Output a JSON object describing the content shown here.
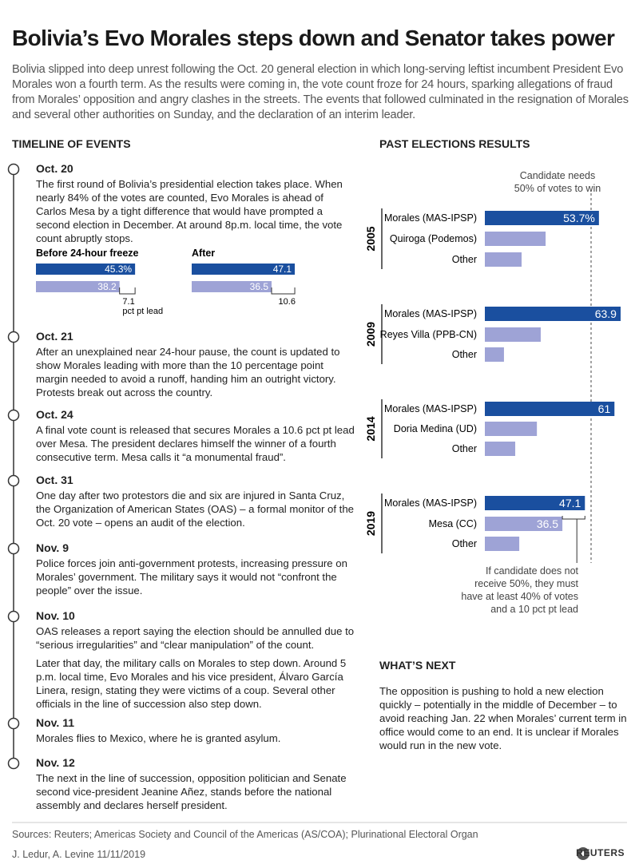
{
  "header": {
    "title": "Bolivia’s Evo Morales steps down and Senator takes power",
    "intro": "Bolivia slipped into deep unrest following the Oct. 20 general election in which long-serving leftist incumbent President Evo Morales won a fourth term. As the results were coming in, the vote count froze for 24 hours, sparking allegations of fraud from Morales’ opposition and angry clashes in the streets. The events that followed culminated in the resignation of Morales and several other authorities on Sunday, and the declaration of an interim leader."
  },
  "timeline": {
    "heading": "TIMELINE OF EVENTS",
    "events": [
      {
        "date": "Oct. 20",
        "paragraphs": [
          "The first round of Bolivia’s presidential election takes place. When nearly 84% of the votes are counted, Evo Morales is ahead of Carlos Mesa by a tight difference that would have prompted a second election in December. At around 8p.m. local time, the vote count abruptly stops."
        ]
      },
      {
        "date": "Oct. 21",
        "paragraphs": [
          "After an unexplained near 24-hour pause, the count is updated to show Morales leading with more than the 10 percentage point margin needed to avoid a runoff, handing him an outright victory. Protests break out across the country."
        ]
      },
      {
        "date": "Oct. 24",
        "paragraphs": [
          "A final vote count is released that secures Morales a 10.6 pct pt lead over Mesa. The president declares himself the winner of a fourth consecutive term. Mesa calls it “a monumental fraud”."
        ]
      },
      {
        "date": "Oct. 31",
        "paragraphs": [
          "One day after two protestors die and six are injured in Santa Cruz, the Organization of American States (OAS) – a formal monitor of the Oct. 20 vote – opens an audit of the election."
        ]
      },
      {
        "date": "Nov. 9",
        "paragraphs": [
          "Police forces join anti-government protests, increasing pressure on Morales’ government. The military says it would not “confront the people” over the issue."
        ]
      },
      {
        "date": "Nov. 10",
        "paragraphs": [
          "OAS releases a report saying the election should be annulled due to “serious irregularities” and “clear manipulation” of the count.",
          "Later that day, the military calls on Morales to step down. Around 5 p.m. local time, Evo Morales and his vice president, Álvaro García Linera, resign, stating they were victims of a coup. Several other officials in the line of succession also step down."
        ]
      },
      {
        "date": "Nov. 11",
        "paragraphs": [
          "Morales flies to Mexico, where he is granted asylum."
        ]
      },
      {
        "date": "Nov. 12",
        "paragraphs": [
          "The next in the line of succession, opposition politician and Senate second vice-president Jeanine Añez, stands before the national assembly and declares herself president."
        ]
      }
    ]
  },
  "freeze_chart": {
    "type": "bar",
    "colors": [
      "#1a4f9f",
      "#9ea3d6"
    ],
    "panels": [
      {
        "title": "Before 24-hour freeze",
        "values": [
          45.3,
          38.2
        ],
        "value_labels": [
          "45.3%",
          "38.2"
        ],
        "lead": 7.1,
        "lead_label": "pct pt lead"
      },
      {
        "title": "After",
        "values": [
          47.1,
          36.5
        ],
        "lead": 10.6
      }
    ]
  },
  "elections": {
    "type": "bar",
    "heading": "PAST ELECTIONS RESULTS",
    "colors": [
      "#1a4f9f",
      "#9ea3d6"
    ],
    "threshold": 50,
    "threshold_note": [
      "Candidate needs",
      "50% of votes to win"
    ],
    "groups": [
      {
        "year": "2005",
        "categories": [
          "Morales (MAS-IPSP)",
          "Quiroga (Podemos)",
          "Other"
        ],
        "values": [
          53.7,
          28.6,
          17.3
        ],
        "value_labels": [
          "53.7%",
          null,
          null
        ]
      },
      {
        "year": "2009",
        "categories": [
          "Morales (MAS-IPSP)",
          "Reyes Villa (PPB-CN)",
          "Other"
        ],
        "values": [
          63.9,
          26.3,
          9
        ],
        "value_labels": [
          "63.9",
          null,
          null
        ]
      },
      {
        "year": "2014",
        "categories": [
          "Morales (MAS-IPSP)",
          "Doria Medina (UD)",
          "Other"
        ],
        "values": [
          61,
          24.5,
          14.3
        ],
        "value_labels": [
          "61",
          null,
          null
        ]
      },
      {
        "year": "2019",
        "categories": [
          "Morales (MAS-IPSP)",
          "Mesa (CC)",
          "Other"
        ],
        "values": [
          47.1,
          36.5,
          16.2
        ],
        "value_labels": [
          "47.1",
          "36.5",
          null
        ]
      }
    ],
    "note": [
      "If candidate does not",
      "receive 50%, they must",
      "have at least 40% of votes",
      "and a 10 pct pt lead"
    ]
  },
  "whats_next": {
    "heading": "WHAT’S NEXT",
    "text": "The opposition is pushing to hold a new election quickly – potentially in the middle of December – to avoid reaching Jan. 22 when Morales’ current term in office would come to an end. It is unclear if Morales would run in the new vote."
  },
  "footer": {
    "sources": "Sources: Reuters; Americas Society and Council of the Americas (AS/COA); Plurinational Electoral Organ",
    "credit": "J. Ledur, A. Levine 11/11/2019",
    "logo": "REUTERS"
  }
}
